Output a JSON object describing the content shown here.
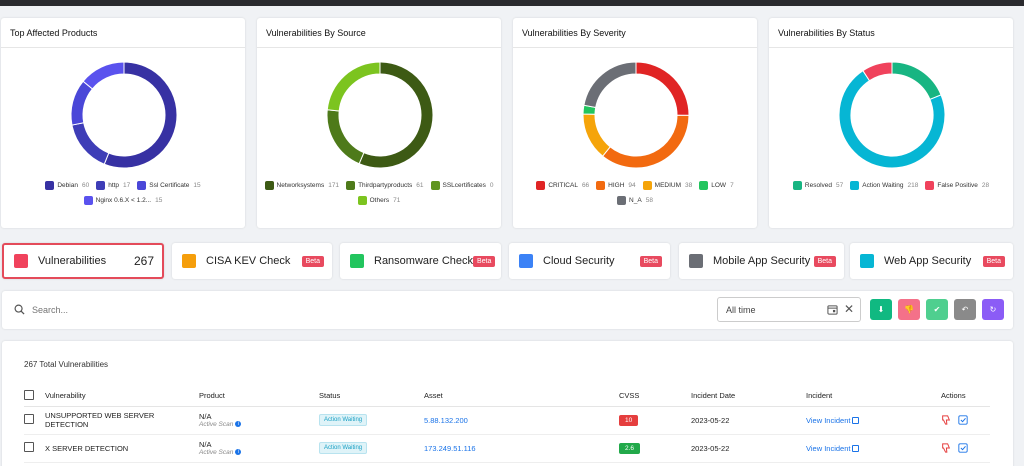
{
  "charts": [
    {
      "title": "Top Affected Products",
      "chart_data": {
        "type": "pie",
        "categories": [
          "Debian",
          "http",
          "Ssl Certificate",
          "Nginx 0.6.X < 1.2..."
        ],
        "values": [
          60,
          17,
          15,
          15
        ],
        "colors": [
          "#3731a3",
          "#3e3db7",
          "#4a47d8",
          "#5a52ee"
        ]
      }
    },
    {
      "title": "Vulnerabilities By Source",
      "chart_data": {
        "type": "pie",
        "categories": [
          "Networksystems",
          "Thirdpartyproducts",
          "SSLcertificates",
          "Others"
        ],
        "values": [
          171,
          61,
          0,
          71
        ],
        "colors": [
          "#3d5a14",
          "#4e7a1a",
          "#5f9520",
          "#7cc41f"
        ]
      }
    },
    {
      "title": "Vulnerabilities By Severity",
      "chart_data": {
        "type": "pie",
        "categories": [
          "CRITICAL",
          "HIGH",
          "MEDIUM",
          "LOW",
          "N_A"
        ],
        "values": [
          66,
          94,
          38,
          7,
          58
        ],
        "colors": [
          "#e02424",
          "#f26a10",
          "#f5a40a",
          "#22c55e",
          "#6b6e75"
        ]
      }
    },
    {
      "title": "Vulnerabilities By Status",
      "chart_data": {
        "type": "pie",
        "categories": [
          "Resolved",
          "Action Waiting",
          "False Positive"
        ],
        "values": [
          57,
          218,
          28
        ],
        "colors": [
          "#18b582",
          "#06b6d4",
          "#f0425c"
        ]
      }
    }
  ],
  "tabs": [
    {
      "label": "Vulnerabilities",
      "count": "267",
      "badge": "",
      "color": "#f0425c",
      "active": true
    },
    {
      "label": "CISA KEV Check",
      "count": "",
      "badge": "Beta",
      "color": "#f59e0b",
      "active": false
    },
    {
      "label": "Ransomware Check",
      "count": "",
      "badge": "Beta",
      "color": "#22c55e",
      "active": false
    },
    {
      "label": "Cloud Security",
      "count": "",
      "badge": "Beta",
      "color": "#3b82f6",
      "active": false
    },
    {
      "label": "Mobile App Security",
      "count": "",
      "badge": "Beta",
      "color": "#6b6e75",
      "active": false
    },
    {
      "label": "Web App Security",
      "count": "",
      "badge": "Beta",
      "color": "#06b6d4",
      "active": false
    }
  ],
  "toolbar": {
    "search_placeholder": "Search...",
    "date_range": "All time",
    "clear_symbol": "✕",
    "actions": [
      {
        "icon": "download-icon",
        "glyph": "⬇",
        "color": "#10b981"
      },
      {
        "icon": "false-positive-icon",
        "glyph": "👎",
        "color": "#f47189"
      },
      {
        "icon": "resolve-icon",
        "glyph": "✔",
        "color": "#4fcf8f"
      },
      {
        "icon": "undo-icon",
        "glyph": "↶",
        "color": "#8a8a8a"
      },
      {
        "icon": "refresh-icon",
        "glyph": "↻",
        "color": "#8b5cf6"
      }
    ]
  },
  "table": {
    "total_label": "267 Total Vulnerabilities",
    "columns": [
      "Vulnerability",
      "Product",
      "Status",
      "Asset",
      "CVSS",
      "Incident Date",
      "Incident",
      "Actions"
    ],
    "rows": [
      {
        "vulnerability": "UNSUPPORTED WEB SERVER DETECTION",
        "product": "N/A",
        "product_sub": "Active Scan",
        "status": "Action Waiting",
        "asset": "5.88.132.200",
        "cvss": "10",
        "cvss_color": "#e53e3e",
        "incident_date": "2023-05-22",
        "incident": "View Incident"
      },
      {
        "vulnerability": "X SERVER DETECTION",
        "product": "N/A",
        "product_sub": "Active Scan",
        "status": "Action Waiting",
        "asset": "173.249.51.116",
        "cvss": "2.6",
        "cvss_color": "#22a94a",
        "incident_date": "2023-05-22",
        "incident": "View Incident"
      }
    ]
  }
}
